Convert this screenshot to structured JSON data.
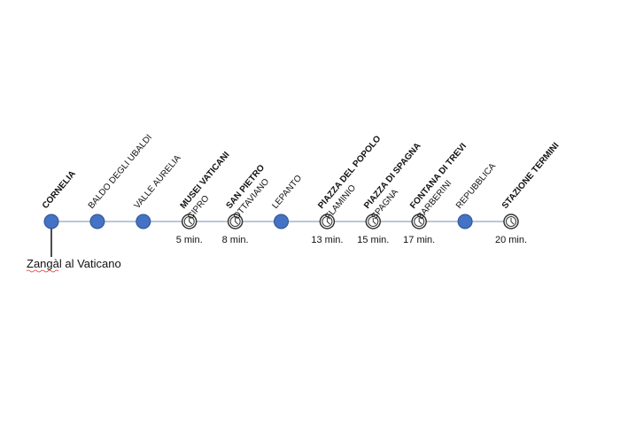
{
  "stations": [
    {
      "name": "CORNELIA",
      "bold": true,
      "marker": "dot"
    },
    {
      "name": "BALDO DEGLI UBALDI",
      "bold": false,
      "marker": "dot"
    },
    {
      "name": "VALLE AURELIA",
      "bold": false,
      "marker": "dot"
    },
    {
      "name": "MUSEI VATICANI",
      "sub": "CIPRO",
      "bold": true,
      "marker": "clock",
      "time": "5 min."
    },
    {
      "name": "SAN PIETRO",
      "sub": "OTTAVIANO",
      "bold": true,
      "marker": "clock",
      "time": "8 min."
    },
    {
      "name": "LEPANTO",
      "bold": false,
      "marker": "dot"
    },
    {
      "name": "PIAZZA DEL POPOLO",
      "sub": "FLAMINIO",
      "bold": true,
      "marker": "clock",
      "time": "13 min."
    },
    {
      "name": "PIAZZA DI SPAGNA",
      "sub": "SPAGNA",
      "bold": true,
      "marker": "clock",
      "time": "15 min."
    },
    {
      "name": "FONTANA DI TREVI",
      "sub": "BARBERINI",
      "bold": true,
      "marker": "clock",
      "time": "17 min."
    },
    {
      "name": "REPUBBLICA",
      "bold": false,
      "marker": "dot"
    },
    {
      "name": "STAZIONE TERMINI",
      "bold": true,
      "marker": "clock",
      "time": "20 min."
    }
  ],
  "note": "Zangàl al Vaticano"
}
